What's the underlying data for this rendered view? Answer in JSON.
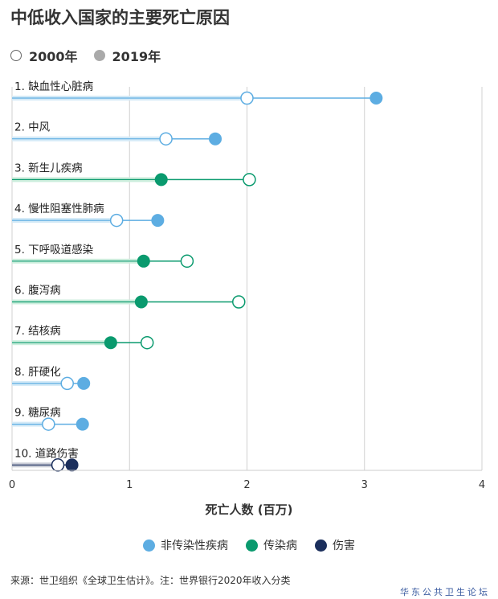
{
  "title": "中低收入国家的主要死亡原因",
  "year_legend": [
    {
      "label": "2000年",
      "style": "open"
    },
    {
      "label": "2019年",
      "style": "filled"
    }
  ],
  "category_legend": [
    {
      "label": "非传染性疾病",
      "color": "#5dade2"
    },
    {
      "label": "传染病",
      "color": "#0a9a6e"
    },
    {
      "label": "伤害",
      "color": "#1b2f5c"
    }
  ],
  "source": "来源：世卫组织《全球卫生估计》。注：世界银行2020年收入分类",
  "watermark": "华东公共卫生论坛",
  "chart_data": {
    "type": "dumbbell",
    "xlabel": "死亡人数 (百万)",
    "xlim": [
      0,
      4
    ],
    "xticks": [
      0,
      1,
      2,
      3,
      4
    ],
    "grid": "vertical",
    "categories": [
      {
        "label": "1. 缺血性心脏病",
        "group": "非传染性疾病",
        "y2000": 2.0,
        "y2019": 3.1
      },
      {
        "label": "2. 中风",
        "group": "非传染性疾病",
        "y2000": 1.31,
        "y2019": 1.73
      },
      {
        "label": "3. 新生儿疾病",
        "group": "传染病",
        "y2000": 2.02,
        "y2019": 1.27
      },
      {
        "label": "4. 慢性阻塞性肺病",
        "group": "非传染性疾病",
        "y2000": 0.89,
        "y2019": 1.24
      },
      {
        "label": "5. 下呼吸道感染",
        "group": "传染病",
        "y2000": 1.49,
        "y2019": 1.12
      },
      {
        "label": "6. 腹泻病",
        "group": "传染病",
        "y2000": 1.93,
        "y2019": 1.1
      },
      {
        "label": "7. 结核病",
        "group": "传染病",
        "y2000": 1.15,
        "y2019": 0.84
      },
      {
        "label": "8. 肝硬化",
        "group": "非传染性疾病",
        "y2000": 0.47,
        "y2019": 0.61
      },
      {
        "label": "9. 糖尿病",
        "group": "非传染性疾病",
        "y2000": 0.31,
        "y2019": 0.6
      },
      {
        "label": "10. 道路伤害",
        "group": "伤害",
        "y2000": 0.39,
        "y2019": 0.51
      }
    ]
  }
}
